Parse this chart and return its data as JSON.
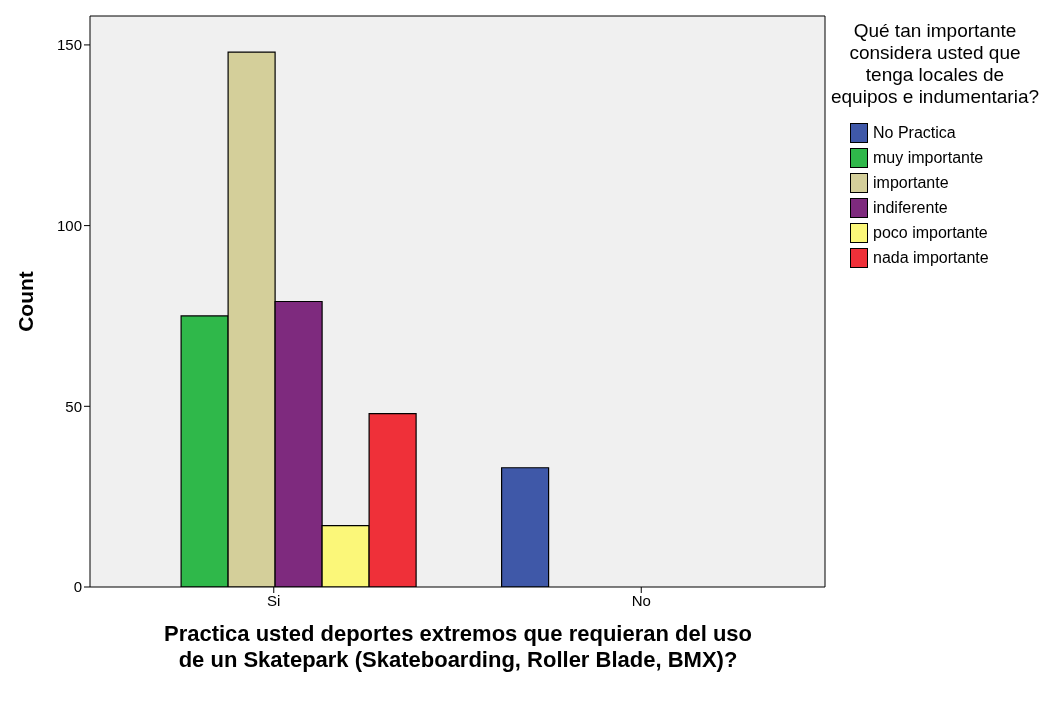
{
  "chart_data": {
    "type": "bar",
    "xlabel": "Practica usted deportes extremos que requieran del uso de un Skatepark (Skateboarding, Roller Blade, BMX)?",
    "ylabel": "Count",
    "legend_title": "Qué tan importante considera usted que tenga locales de equipos e indumentaria?",
    "categories": [
      "Si",
      "No"
    ],
    "series": [
      {
        "name": "No Practica",
        "color": "#3f58a8",
        "values": [
          null,
          33
        ]
      },
      {
        "name": "muy importante",
        "color": "#2fb84a",
        "values": [
          75,
          null
        ]
      },
      {
        "name": "importante",
        "color": "#d4cf9a",
        "values": [
          148,
          null
        ]
      },
      {
        "name": "indiferente",
        "color": "#7e2a7e",
        "values": [
          79,
          null
        ]
      },
      {
        "name": "poco importante",
        "color": "#fbf779",
        "values": [
          17,
          null
        ]
      },
      {
        "name": "nada importante",
        "color": "#ef3039",
        "values": [
          48,
          null
        ]
      }
    ],
    "ylim": [
      0,
      158
    ],
    "yticks": [
      0,
      50,
      100,
      150
    ],
    "grid": false,
    "legend": "right"
  }
}
